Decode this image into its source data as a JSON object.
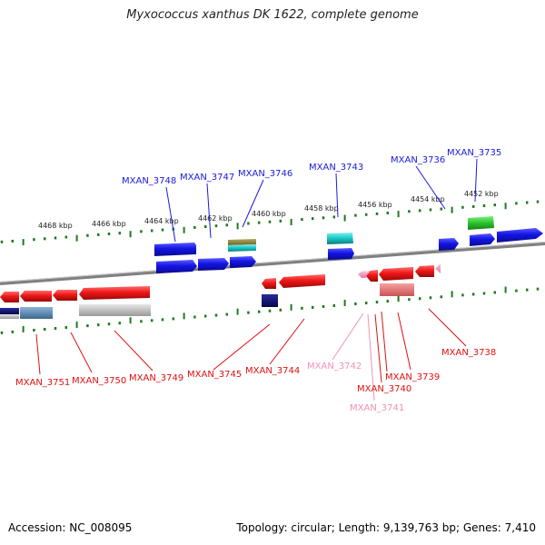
{
  "title": "Myxococcus xanthus DK 1622, complete genome",
  "footer": {
    "accession": "Accession: NC_008095",
    "summary": "Topology: circular; Length: 9,139,763 bp; Genes: 7,410"
  },
  "scale_labels": [
    "4468 kbp",
    "4466 kbp",
    "4464 kbp",
    "4462 kbp",
    "4460 kbp",
    "4458 kbp",
    "4456 kbp",
    "4454 kbp",
    "4452 kbp"
  ],
  "genes_top": [
    "MXAN_3748",
    "MXAN_3747",
    "MXAN_3746",
    "MXAN_3743",
    "MXAN_3736",
    "MXAN_3735"
  ],
  "genes_bottom": [
    "MXAN_3751",
    "MXAN_3750",
    "MXAN_3749",
    "MXAN_3745",
    "MXAN_3744",
    "MXAN_3742",
    "MXAN_3741",
    "MXAN_3740",
    "MXAN_3739",
    "MXAN_3738"
  ],
  "colors": {
    "forward": "#1a1adc",
    "reverse": "#e01010",
    "reverse_pseudo": "#f090b8",
    "ticks": "#1e7a1e",
    "backbone": "#808080"
  }
}
